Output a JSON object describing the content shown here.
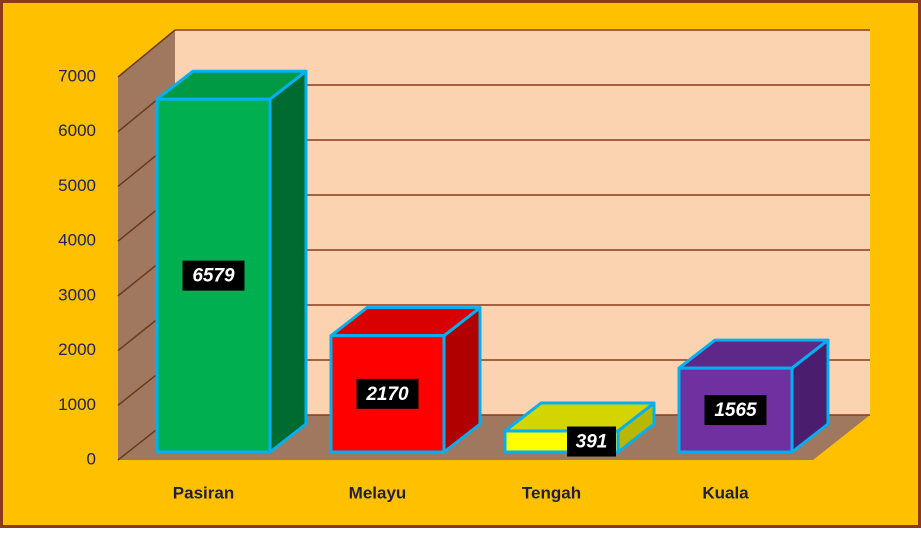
{
  "chart_data": {
    "type": "bar3d",
    "categories": [
      "Pasiran",
      "Melayu",
      "Tengah",
      "Kuala"
    ],
    "values": [
      6579,
      2170,
      391,
      1565
    ],
    "colors": [
      "#00B050",
      "#FF0000",
      "#FFFF00",
      "#7030A0"
    ],
    "side_colors": [
      "#006B30",
      "#B00000",
      "#B8B800",
      "#4A1D6E"
    ],
    "top_colors": [
      "#009A45",
      "#D80000",
      "#D4D400",
      "#5E2888"
    ],
    "ylim": [
      0,
      7000
    ],
    "yticks": [
      0,
      1000,
      2000,
      3000,
      4000,
      5000,
      6000,
      7000
    ],
    "grid": true
  }
}
